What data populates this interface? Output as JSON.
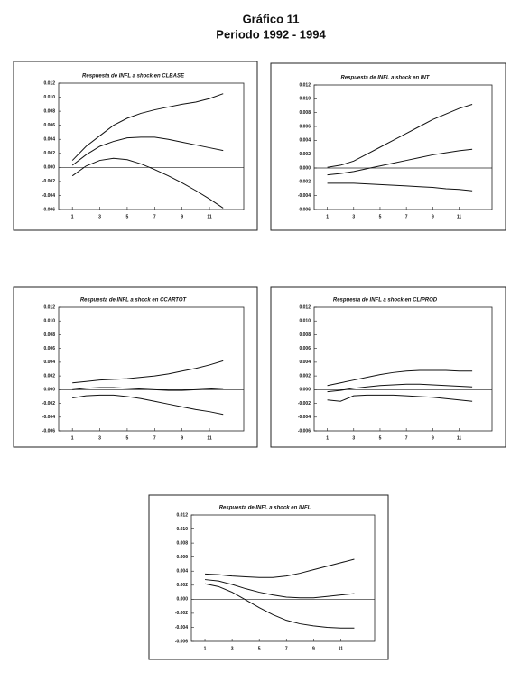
{
  "page": {
    "title": "Gráfico 11",
    "subtitle": "Periodo 1992 - 1994"
  },
  "chart_data": [
    {
      "type": "line",
      "title": "Respuesta de INFL a shock en CLBASE",
      "x": [
        1,
        2,
        3,
        4,
        5,
        6,
        7,
        8,
        9,
        10,
        11,
        12
      ],
      "xlim": [
        0,
        13.5
      ],
      "xticks": [
        1,
        3,
        5,
        7,
        9,
        11
      ],
      "ylim": [
        -0.006,
        0.012
      ],
      "yticks": [
        -0.006,
        -0.004,
        -0.002,
        {
          "value": 0,
          "label": "0.000"
        },
        0.002,
        0.004,
        0.006,
        0.008,
        {
          "value": 0.01,
          "label": "0.010"
        },
        0.012
      ],
      "series": [
        {
          "color": "#111111",
          "values": [
            0.001,
            0.003,
            0.0045,
            0.006,
            0.007,
            0.0077,
            0.0082,
            0.0086,
            0.009,
            0.0093,
            0.0098,
            0.0105
          ]
        },
        {
          "color": "#111111",
          "values": [
            0.0003,
            0.0018,
            0.003,
            0.0037,
            0.0042,
            0.0043,
            0.0043,
            0.004,
            0.0036,
            0.0032,
            0.0028,
            0.0024
          ]
        },
        {
          "color": "#111111",
          "values": [
            -0.0012,
            0.0002,
            0.001,
            0.0013,
            0.0011,
            0.0005,
            -0.0003,
            -0.0012,
            -0.0022,
            -0.0033,
            -0.0045,
            -0.0058
          ]
        }
      ]
    },
    {
      "type": "line",
      "title": "Respuesta de INFL a shock en INT",
      "x": [
        1,
        2,
        3,
        4,
        5,
        6,
        7,
        8,
        9,
        10,
        11,
        12
      ],
      "xlim": [
        0,
        13.5
      ],
      "xticks": [
        1,
        3,
        5,
        7,
        9,
        11
      ],
      "ylim": [
        -0.006,
        0.012
      ],
      "yticks": [
        -0.006,
        -0.004,
        -0.002,
        {
          "value": 0,
          "label": "0.000"
        },
        0.002,
        0.004,
        0.006,
        0.008,
        {
          "value": 0.01,
          "label": "0.010"
        },
        0.012
      ],
      "series": [
        {
          "color": "#111111",
          "values": [
            0.0001,
            0.0004,
            0.001,
            0.002,
            0.003,
            0.004,
            0.005,
            0.006,
            0.007,
            0.0078,
            0.0086,
            0.0092
          ]
        },
        {
          "color": "#111111",
          "values": [
            -0.001,
            -0.0008,
            -0.0005,
            -0.0001,
            0.0003,
            0.0007,
            0.0011,
            0.0015,
            0.0019,
            0.0022,
            0.0025,
            0.0027
          ]
        },
        {
          "color": "#111111",
          "values": [
            -0.0022,
            -0.0022,
            -0.0022,
            -0.0023,
            -0.0024,
            -0.0025,
            -0.0026,
            -0.0027,
            -0.0028,
            -0.003,
            -0.0031,
            -0.0033
          ]
        }
      ]
    },
    {
      "type": "line",
      "title": "Respuesta de INFL a shock en CCARTOT",
      "x": [
        1,
        2,
        3,
        4,
        5,
        6,
        7,
        8,
        9,
        10,
        11,
        12
      ],
      "xlim": [
        0,
        13.5
      ],
      "xticks": [
        1,
        3,
        5,
        7,
        9,
        11
      ],
      "ylim": [
        -0.006,
        0.012
      ],
      "yticks": [
        -0.006,
        -0.004,
        -0.002,
        {
          "value": 0,
          "label": "0.000"
        },
        0.002,
        0.004,
        0.006,
        0.008,
        {
          "value": 0.01,
          "label": "0.010"
        },
        0.012
      ],
      "series": [
        {
          "color": "#111111",
          "values": [
            0.001,
            0.0012,
            0.0014,
            0.0015,
            0.0016,
            0.0018,
            0.002,
            0.0023,
            0.0027,
            0.0031,
            0.0036,
            0.0042
          ]
        },
        {
          "color": "#111111",
          "values": [
            0,
            0.0002,
            0.0003,
            0.0003,
            0.0002,
            0.0001,
            0,
            -0.0001,
            -0.0001,
            0,
            0.0001,
            0.0002
          ]
        },
        {
          "color": "#111111",
          "values": [
            -0.0012,
            -0.0009,
            -0.0008,
            -0.0008,
            -0.001,
            -0.0013,
            -0.0017,
            -0.0021,
            -0.0025,
            -0.0029,
            -0.0032,
            -0.0036
          ]
        }
      ]
    },
    {
      "type": "line",
      "title": "Respuesta de INFL a shock en CLIPROD",
      "x": [
        1,
        2,
        3,
        4,
        5,
        6,
        7,
        8,
        9,
        10,
        11,
        12
      ],
      "xlim": [
        0,
        13.5
      ],
      "xticks": [
        1,
        3,
        5,
        7,
        9,
        11
      ],
      "ylim": [
        -0.006,
        0.012
      ],
      "yticks": [
        -0.006,
        -0.004,
        -0.002,
        {
          "value": 0,
          "label": "0.000"
        },
        0.002,
        0.004,
        0.006,
        0.008,
        {
          "value": 0.01,
          "label": "0.010"
        },
        0.012
      ],
      "series": [
        {
          "color": "#111111",
          "values": [
            0.0006,
            0.001,
            0.0014,
            0.0018,
            0.0022,
            0.0025,
            0.0027,
            0.0028,
            0.0028,
            0.0028,
            0.0027,
            0.0027
          ]
        },
        {
          "color": "#111111",
          "values": [
            -0.0003,
            -0.0001,
            0.0002,
            0.0004,
            0.0006,
            0.0007,
            0.0008,
            0.0008,
            0.0007,
            0.0006,
            0.0005,
            0.0004
          ]
        },
        {
          "color": "#111111",
          "values": [
            -0.0015,
            -0.0017,
            -0.0009,
            -0.0008,
            -0.0008,
            -0.0008,
            -0.0009,
            -0.001,
            -0.0011,
            -0.0013,
            -0.0015,
            -0.0017
          ]
        }
      ]
    },
    {
      "type": "line",
      "title": "Respuesta de INFL a shock en INFL",
      "x": [
        1,
        2,
        3,
        4,
        5,
        6,
        7,
        8,
        9,
        10,
        11,
        12
      ],
      "xlim": [
        0,
        13.5
      ],
      "xticks": [
        1,
        3,
        5,
        7,
        9,
        11
      ],
      "ylim": [
        -0.006,
        0.012
      ],
      "yticks": [
        -0.006,
        -0.004,
        -0.002,
        {
          "value": 0,
          "label": "0.000"
        },
        0.002,
        0.004,
        0.006,
        0.008,
        {
          "value": 0.01,
          "label": "0.010"
        },
        0.012
      ],
      "series": [
        {
          "color": "#111111",
          "values": [
            0.0036,
            0.0035,
            0.0033,
            0.0032,
            0.0031,
            0.0031,
            0.0033,
            0.0037,
            0.0042,
            0.0047,
            0.0052,
            0.0057
          ]
        },
        {
          "color": "#111111",
          "values": [
            0.0028,
            0.0026,
            0.0021,
            0.0015,
            0.001,
            0.0006,
            0.0003,
            0.0002,
            0.0002,
            0.0004,
            0.0006,
            0.0008
          ]
        },
        {
          "color": "#111111",
          "values": [
            0.0022,
            0.0018,
            0.001,
            -0.0001,
            -0.0012,
            -0.0022,
            -0.003,
            -0.0035,
            -0.0038,
            -0.004,
            -0.0041,
            -0.0041
          ]
        }
      ]
    }
  ]
}
